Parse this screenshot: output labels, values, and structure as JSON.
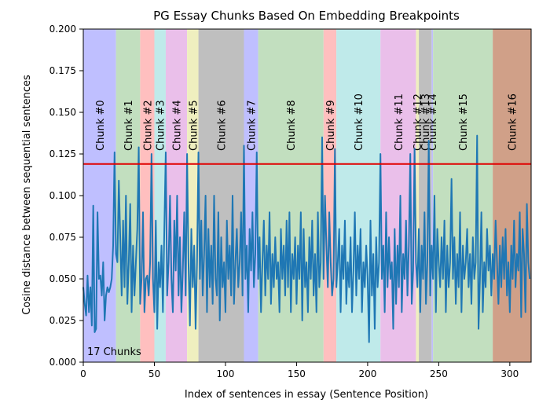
{
  "chart_data": {
    "type": "line",
    "title": "PG Essay Chunks Based On Embedding Breakpoints",
    "xlabel": "Index of sentences in essay (Sentence Position)",
    "ylabel": "Cosine distance between sequential sentences",
    "xlim": [
      0,
      315
    ],
    "ylim": [
      0.0,
      0.2
    ],
    "x_ticks": [
      0,
      50,
      100,
      150,
      200,
      250,
      300
    ],
    "y_ticks": [
      0.0,
      0.025,
      0.05,
      0.075,
      0.1,
      0.125,
      0.15,
      0.175,
      0.2
    ],
    "x_tick_labels": [
      "0",
      "50",
      "100",
      "150",
      "200",
      "250",
      "300"
    ],
    "y_tick_labels": [
      "0.000",
      "0.025",
      "0.050",
      "0.075",
      "0.100",
      "0.125",
      "0.150",
      "0.175",
      "0.200"
    ],
    "grid": false,
    "threshold": {
      "y": 0.119,
      "color": "#e00000"
    },
    "line_color": "#1f77b4",
    "annotation": "17 Chunks",
    "chunks": [
      {
        "label": "Chunk #0",
        "start": 0,
        "end": 23,
        "color": "#bfbfff"
      },
      {
        "label": "Chunk #1",
        "start": 23,
        "end": 40,
        "color": "#c2dfbf"
      },
      {
        "label": "Chunk #2",
        "start": 40,
        "end": 50,
        "color": "#ffbfbf"
      },
      {
        "label": "Chunk #3",
        "start": 50,
        "end": 58,
        "color": "#bfeaea"
      },
      {
        "label": "Chunk #4",
        "start": 58,
        "end": 73,
        "color": "#eabfea"
      },
      {
        "label": "Chunk #5",
        "start": 73,
        "end": 81,
        "color": "#efefbf"
      },
      {
        "label": "Chunk #6",
        "start": 81,
        "end": 113,
        "color": "#bfbfbf"
      },
      {
        "label": "Chunk #7",
        "start": 113,
        "end": 123,
        "color": "#bfbfff"
      },
      {
        "label": "Chunk #8",
        "start": 123,
        "end": 169,
        "color": "#c2dfbf"
      },
      {
        "label": "Chunk #9",
        "start": 169,
        "end": 178,
        "color": "#ffbfbf"
      },
      {
        "label": "Chunk #10",
        "start": 178,
        "end": 209,
        "color": "#bfeaea"
      },
      {
        "label": "Chunk #11",
        "start": 209,
        "end": 234,
        "color": "#eabfea"
      },
      {
        "label": "Chunk #12",
        "start": 234,
        "end": 236,
        "color": "#efefbf"
      },
      {
        "label": "Chunk #13",
        "start": 236,
        "end": 245,
        "color": "#bfbfbf"
      },
      {
        "label": "Chunk #14",
        "start": 245,
        "end": 246,
        "color": "#bfbfff"
      },
      {
        "label": "Chunk #15",
        "start": 246,
        "end": 288,
        "color": "#c2dfbf"
      },
      {
        "label": "Chunk #16",
        "start": 288,
        "end": 315,
        "color": "#d0a088"
      }
    ],
    "series": [
      {
        "values": [
          0.045,
          0.035,
          0.028,
          0.052,
          0.03,
          0.045,
          0.022,
          0.094,
          0.018,
          0.02,
          0.09,
          0.05,
          0.052,
          0.04,
          0.06,
          0.025,
          0.04,
          0.045,
          0.042,
          0.045,
          0.05,
          0.07,
          0.126,
          0.065,
          0.06,
          0.109,
          0.075,
          0.04,
          0.085,
          0.045,
          0.1,
          0.035,
          0.06,
          0.095,
          0.03,
          0.07,
          0.04,
          0.06,
          0.08,
          0.129,
          0.035,
          0.05,
          0.09,
          0.03,
          0.05,
          0.052,
          0.04,
          0.06,
          0.125,
          0.05,
          0.03,
          0.085,
          0.02,
          0.06,
          0.045,
          0.07,
          0.03,
          0.08,
          0.126,
          0.04,
          0.06,
          0.1,
          0.05,
          0.03,
          0.085,
          0.055,
          0.1,
          0.04,
          0.075,
          0.03,
          0.055,
          0.09,
          0.04,
          0.125,
          0.06,
          0.022,
          0.08,
          0.045,
          0.07,
          0.02,
          0.06,
          0.126,
          0.05,
          0.085,
          0.04,
          0.065,
          0.1,
          0.03,
          0.08,
          0.045,
          0.07,
          0.035,
          0.1,
          0.05,
          0.04,
          0.09,
          0.025,
          0.075,
          0.045,
          0.06,
          0.03,
          0.085,
          0.05,
          0.07,
          0.04,
          0.1,
          0.035,
          0.06,
          0.08,
          0.045,
          0.06,
          0.09,
          0.04,
          0.13,
          0.05,
          0.07,
          0.03,
          0.08,
          0.055,
          0.09,
          0.045,
          0.065,
          0.126,
          0.05,
          0.075,
          0.03,
          0.06,
          0.085,
          0.04,
          0.07,
          0.05,
          0.09,
          0.035,
          0.065,
          0.045,
          0.075,
          0.05,
          0.06,
          0.03,
          0.08,
          0.05,
          0.07,
          0.04,
          0.085,
          0.045,
          0.09,
          0.03,
          0.065,
          0.05,
          0.075,
          0.035,
          0.07,
          0.05,
          0.09,
          0.025,
          0.08,
          0.045,
          0.06,
          0.03,
          0.075,
          0.05,
          0.085,
          0.04,
          0.065,
          0.03,
          0.09,
          0.045,
          0.06,
          0.135,
          0.05,
          0.1,
          0.07,
          0.045,
          0.09,
          0.06,
          0.04,
          0.05,
          0.128,
          0.045,
          0.06,
          0.08,
          0.03,
          0.07,
          0.05,
          0.085,
          0.035,
          0.06,
          0.045,
          0.075,
          0.03,
          0.055,
          0.09,
          0.04,
          0.07,
          0.05,
          0.08,
          0.03,
          0.06,
          0.045,
          0.07,
          0.05,
          0.012,
          0.085,
          0.04,
          0.065,
          0.02,
          0.075,
          0.045,
          0.06,
          0.125,
          0.05,
          0.07,
          0.03,
          0.09,
          0.045,
          0.075,
          0.05,
          0.06,
          0.02,
          0.08,
          0.035,
          0.07,
          0.045,
          0.1,
          0.03,
          0.065,
          0.05,
          0.085,
          0.04,
          0.07,
          0.125,
          0.035,
          0.055,
          0.128,
          0.06,
          0.045,
          0.08,
          0.03,
          0.07,
          0.05,
          0.09,
          0.035,
          0.06,
          0.133,
          0.04,
          0.07,
          0.05,
          0.1,
          0.03,
          0.08,
          0.06,
          0.045,
          0.075,
          0.05,
          0.085,
          0.03,
          0.07,
          0.045,
          0.06,
          0.11,
          0.05,
          0.075,
          0.035,
          0.065,
          0.045,
          0.09,
          0.03,
          0.07,
          0.05,
          0.06,
          0.08,
          0.045,
          0.065,
          0.035,
          0.075,
          0.05,
          0.06,
          0.136,
          0.02,
          0.05,
          0.09,
          0.03,
          0.06,
          0.045,
          0.08,
          0.055,
          0.07,
          0.04,
          0.065,
          0.05,
          0.085,
          0.06,
          0.035,
          0.07,
          0.045,
          0.075,
          0.05,
          0.08,
          0.04,
          0.06,
          0.03,
          0.07,
          0.05,
          0.085,
          0.045,
          0.065,
          0.055,
          0.09,
          0.027,
          0.08,
          0.065,
          0.03,
          0.095,
          0.06,
          0.05
        ]
      }
    ]
  }
}
